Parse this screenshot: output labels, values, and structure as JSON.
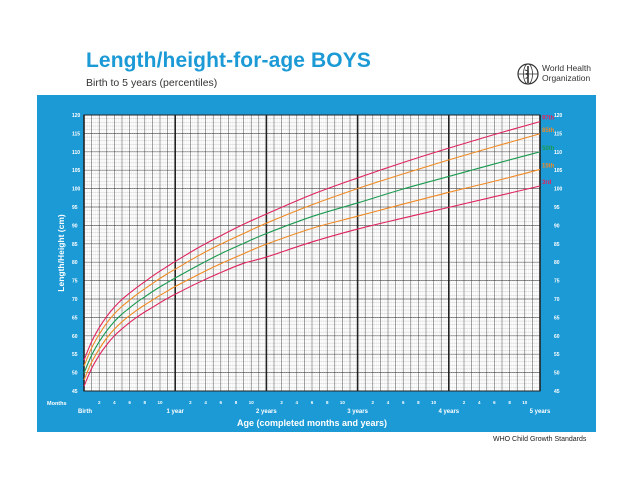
{
  "header": {
    "title": "Length/height-for-age BOYS",
    "subtitle": "Birth to 5 years (percentiles)"
  },
  "logo": {
    "line1": "World Health",
    "line2": "Organization",
    "icon": "who-emblem-icon"
  },
  "footer": {
    "text": "WHO Child Growth Standards"
  },
  "colors": {
    "frame": "#1c9ad6",
    "title": "#1c9ad6",
    "p3_p97": "#e0245e",
    "p15_p85": "#f08a24",
    "p50": "#1a9a50"
  },
  "chart_data": {
    "type": "line",
    "title": "Length/height-for-age BOYS",
    "subtitle": "Birth to 5 years (percentiles)",
    "xlabel": "Age (completed months and years)",
    "ylabel": "Length/Height (cm)",
    "x_unit_label": "Months",
    "xlim": [
      0,
      60
    ],
    "ylim": [
      45,
      120
    ],
    "y_ticks": [
      45,
      50,
      55,
      60,
      65,
      70,
      75,
      80,
      85,
      90,
      95,
      100,
      105,
      110,
      115,
      120
    ],
    "x_major_labels": [
      {
        "month": 0,
        "label": "Birth"
      },
      {
        "month": 12,
        "label": "1 year"
      },
      {
        "month": 24,
        "label": "2 years"
      },
      {
        "month": 36,
        "label": "3 years"
      },
      {
        "month": 48,
        "label": "4 years"
      },
      {
        "month": 60,
        "label": "5 years"
      }
    ],
    "x_minor_labels": [
      "2",
      "4",
      "6",
      "8",
      "10"
    ],
    "grid": true,
    "x": [
      0,
      1,
      2,
      3,
      4,
      5,
      6,
      7,
      8,
      9,
      10,
      11,
      12,
      15,
      18,
      21,
      24,
      30,
      36,
      42,
      48,
      54,
      60
    ],
    "series": [
      {
        "name": "97th",
        "color": "#e0245e",
        "values": [
          53.4,
          58.4,
          62.2,
          65.3,
          67.8,
          69.9,
          71.6,
          73.2,
          74.7,
          76.2,
          77.6,
          78.9,
          80.2,
          83.9,
          87.2,
          90.3,
          93.1,
          98.4,
          102.9,
          107.1,
          111.0,
          114.7,
          118.2
        ]
      },
      {
        "name": "85th",
        "color": "#f08a24",
        "values": [
          51.8,
          56.7,
          60.4,
          63.5,
          66.0,
          68.0,
          69.7,
          71.3,
          72.8,
          74.2,
          75.6,
          76.9,
          78.1,
          81.7,
          84.9,
          87.8,
          90.6,
          95.6,
          100.0,
          104.0,
          107.8,
          111.4,
          114.9
        ]
      },
      {
        "name": "50th",
        "color": "#1a9a50",
        "values": [
          49.9,
          54.7,
          58.4,
          61.4,
          63.9,
          65.9,
          67.6,
          69.2,
          70.6,
          72.0,
          73.3,
          74.5,
          75.7,
          79.1,
          82.3,
          85.1,
          87.8,
          92.4,
          96.1,
          99.9,
          103.3,
          106.7,
          110.0
        ]
      },
      {
        "name": "15th",
        "color": "#f08a24",
        "values": [
          48.0,
          52.8,
          56.4,
          59.4,
          61.8,
          63.8,
          65.5,
          67.0,
          68.4,
          69.7,
          71.0,
          72.2,
          73.4,
          76.6,
          79.6,
          82.3,
          84.9,
          89.2,
          92.5,
          95.8,
          99.0,
          102.0,
          105.2
        ]
      },
      {
        "name": "3rd",
        "color": "#e0245e",
        "values": [
          46.3,
          51.1,
          54.7,
          57.6,
          60.0,
          61.9,
          63.6,
          65.1,
          66.5,
          67.7,
          69.0,
          70.2,
          71.3,
          74.4,
          77.2,
          79.7,
          81.4,
          85.5,
          89.0,
          92.0,
          94.9,
          97.8,
          100.7
        ]
      }
    ]
  }
}
